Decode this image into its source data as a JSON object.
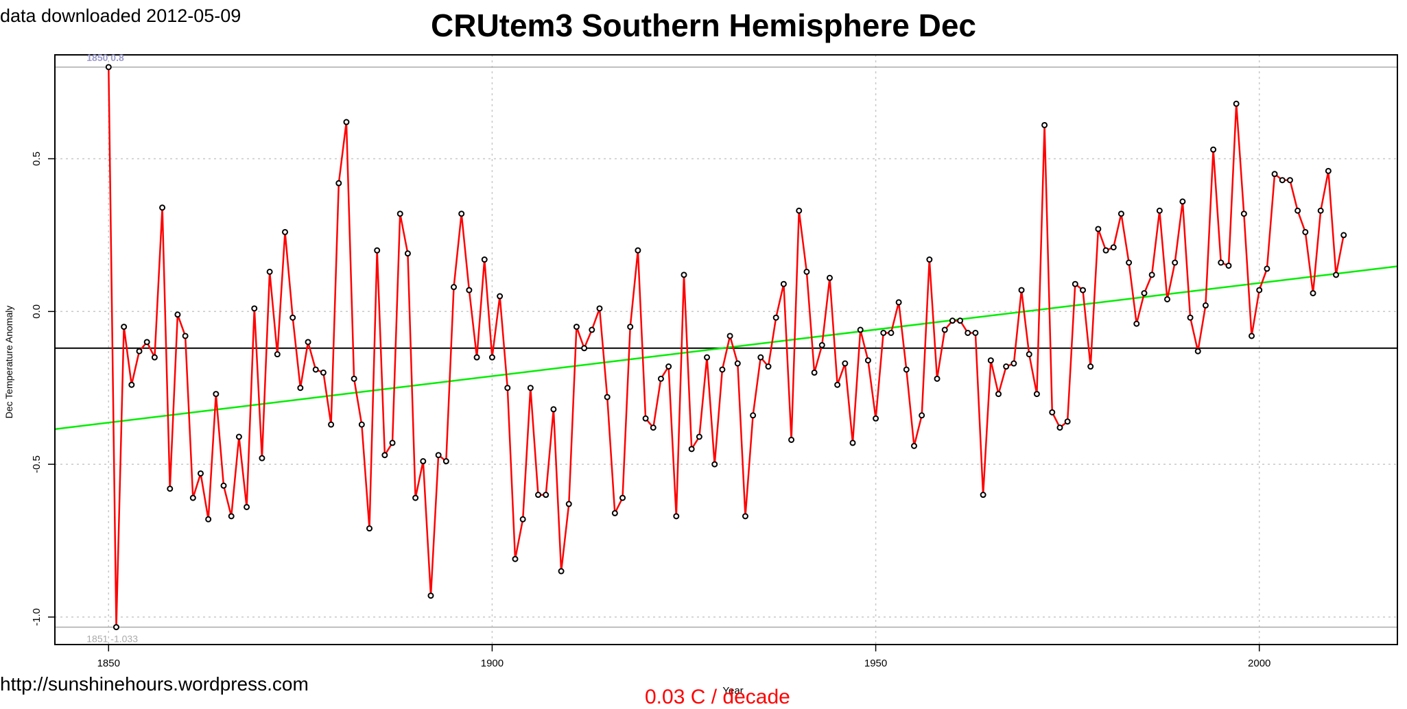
{
  "header": {
    "downloaded": "data downloaded 2012-05-09",
    "title": "CRUtem3 Southern Hemisphere Dec"
  },
  "footer": {
    "url": "http://sunshinehours.wordpress.com",
    "trend_label": "0.03 C / decade"
  },
  "colors": {
    "series": "#ff0000",
    "trend": "#00ee00",
    "mean": "#000000",
    "grid": "#c8c8c8",
    "annotation_max": "#9999cc",
    "annotation_min": "#aaaaaa"
  },
  "chart_data": {
    "type": "line",
    "title": "CRUtem3 Southern Hemisphere Dec",
    "xlabel": "Year",
    "ylabel": "Dec Temperature Anomaly",
    "xlim": [
      1843,
      2018
    ],
    "ylim": [
      -1.09,
      0.84
    ],
    "x_ticks": [
      1850,
      1900,
      1950,
      2000
    ],
    "y_ticks": [
      -1.0,
      -0.5,
      0.0,
      0.5
    ],
    "y_tick_labels": [
      "-1.0",
      "-0.5",
      "0.0",
      "0.5"
    ],
    "grid": true,
    "start_year": 1850,
    "values": [
      0.8,
      -1.033,
      -0.05,
      -0.24,
      -0.13,
      -0.1,
      -0.15,
      0.34,
      -0.58,
      -0.01,
      -0.08,
      -0.61,
      -0.53,
      -0.68,
      -0.27,
      -0.57,
      -0.67,
      -0.41,
      -0.64,
      0.01,
      -0.48,
      0.13,
      -0.14,
      0.26,
      -0.02,
      -0.25,
      -0.1,
      -0.19,
      -0.2,
      -0.37,
      0.42,
      0.62,
      -0.22,
      -0.37,
      -0.71,
      0.2,
      -0.47,
      -0.43,
      0.32,
      0.19,
      -0.61,
      -0.49,
      -0.93,
      -0.47,
      -0.49,
      0.08,
      0.32,
      0.07,
      -0.15,
      0.17,
      -0.15,
      0.05,
      -0.25,
      -0.81,
      -0.68,
      -0.25,
      -0.6,
      -0.6,
      -0.32,
      -0.85,
      -0.63,
      -0.05,
      -0.12,
      -0.06,
      0.01,
      -0.28,
      -0.66,
      -0.61,
      -0.05,
      0.2,
      -0.35,
      -0.38,
      -0.22,
      -0.18,
      -0.67,
      0.12,
      -0.45,
      -0.41,
      -0.15,
      -0.5,
      -0.19,
      -0.08,
      -0.17,
      -0.67,
      -0.34,
      -0.15,
      -0.18,
      -0.02,
      0.09,
      -0.42,
      0.33,
      0.13,
      -0.2,
      -0.11,
      0.11,
      -0.24,
      -0.17,
      -0.43,
      -0.06,
      -0.16,
      -0.35,
      -0.07,
      -0.07,
      0.03,
      -0.19,
      -0.44,
      -0.34,
      0.17,
      -0.22,
      -0.06,
      -0.03,
      -0.03,
      -0.07,
      -0.07,
      -0.6,
      -0.16,
      -0.27,
      -0.18,
      -0.17,
      0.07,
      -0.14,
      -0.27,
      0.61,
      -0.33,
      -0.38,
      -0.36,
      0.09,
      0.07,
      -0.18,
      0.27,
      0.2,
      0.21,
      0.32,
      0.16,
      -0.04,
      0.06,
      0.12,
      0.33,
      0.04,
      0.16,
      0.36,
      -0.02,
      -0.13,
      0.02,
      0.53,
      0.16,
      0.15,
      0.68,
      0.32,
      -0.08,
      0.07,
      0.14,
      0.45,
      0.43,
      0.43,
      0.33,
      0.26,
      0.06,
      0.33,
      0.46,
      0.12,
      0.25
    ],
    "mean_line": -0.12,
    "trend_line": {
      "start": [
        1843,
        -0.385
      ],
      "end": [
        2018,
        0.148
      ],
      "label": "0.03 C / decade"
    },
    "annotations": {
      "max": {
        "year": 1850,
        "label": "1850 0.8"
      },
      "min": {
        "year": 1851,
        "label": "1851 -1.033"
      }
    }
  }
}
